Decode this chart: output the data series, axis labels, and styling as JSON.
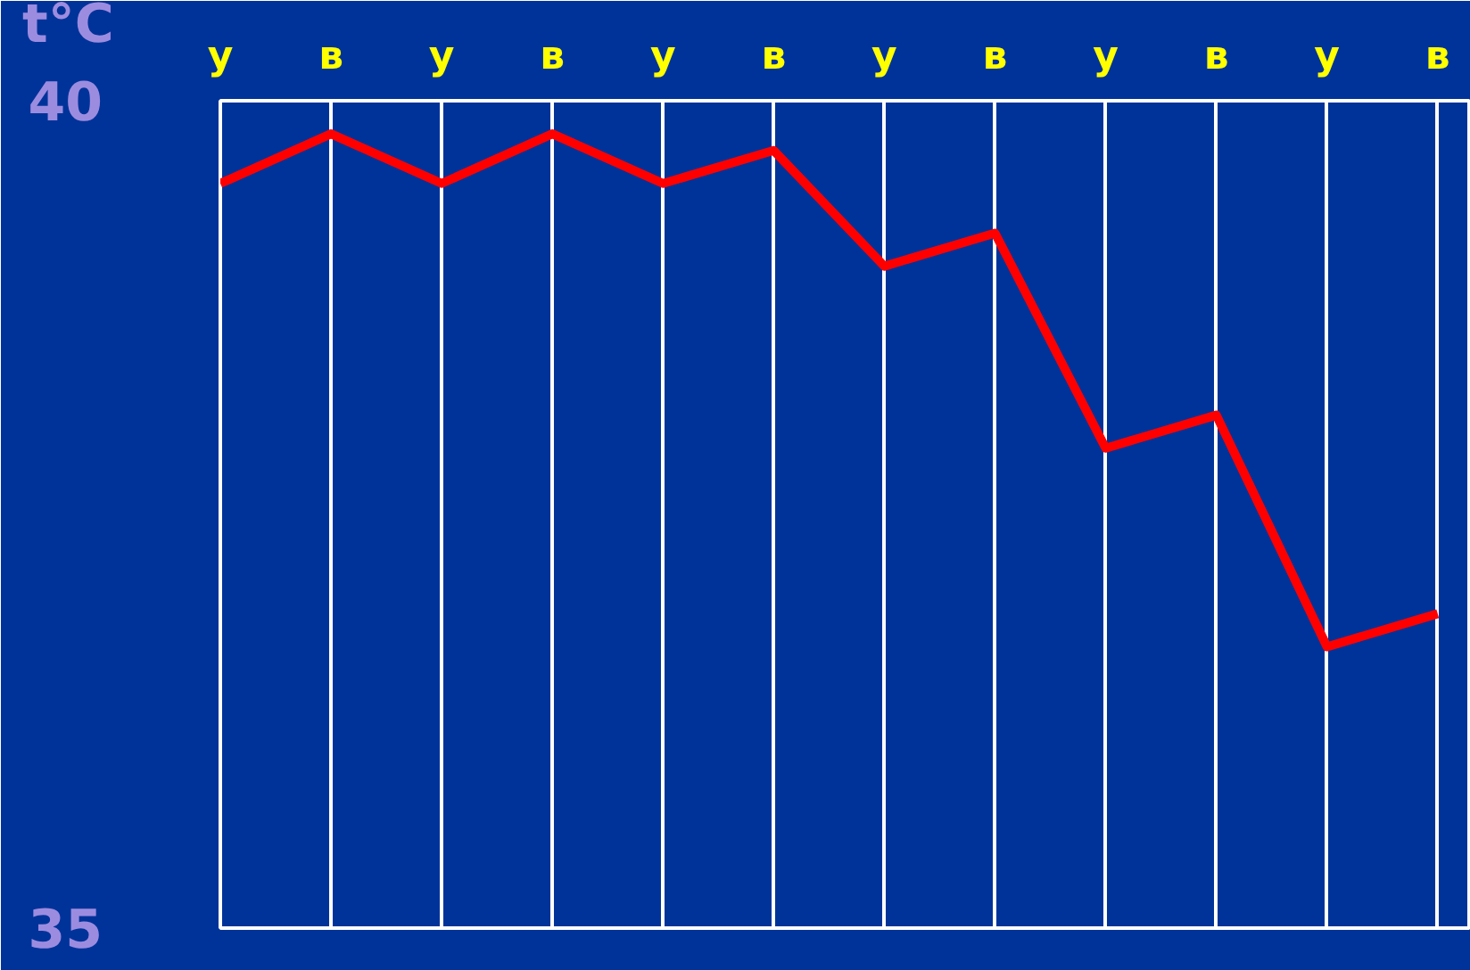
{
  "chart_data": {
    "type": "line",
    "ylabel": "t°C",
    "categories": [
      "у",
      "в",
      "у",
      "в",
      "у",
      "в",
      "у",
      "в",
      "у",
      "в",
      "у",
      "в"
    ],
    "series": [
      {
        "color": "#ff0000",
        "values": [
          39.5,
          39.8,
          39.5,
          39.8,
          39.5,
          39.7,
          39.0,
          39.2,
          37.9,
          38.1,
          36.7,
          36.9
        ]
      }
    ],
    "ylim": [
      35,
      40
    ],
    "yticks": [
      35,
      40
    ],
    "grid": true,
    "marker": "none",
    "line_style": "solid"
  }
}
